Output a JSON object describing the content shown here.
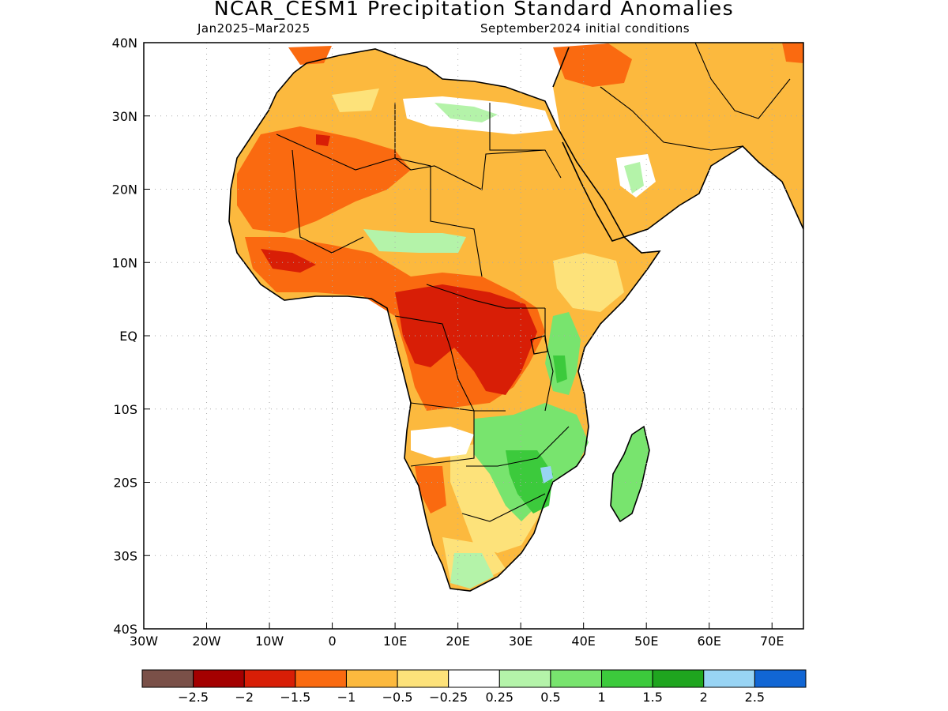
{
  "map": {
    "title": "NCAR_CESM1 Precipitation Standard Anomalies",
    "subtitle_left": "Jan2025–Mar2025",
    "subtitle_right": "September2024 initial conditions",
    "lon_labels": [
      "30W",
      "20W",
      "10W",
      "0",
      "10E",
      "20E",
      "30E",
      "40E",
      "50E",
      "60E",
      "70E"
    ],
    "lat_labels": [
      "40N",
      "30N",
      "20N",
      "10N",
      "EQ",
      "10S",
      "20S",
      "30S",
      "40S"
    ],
    "lon_range": [
      -30,
      75
    ],
    "lat_range": [
      -40,
      40
    ],
    "grid": "dotted",
    "projection": "cylindrical equidistant",
    "region": "Africa and Arabian Peninsula"
  },
  "colorbar": {
    "colors": [
      "#7a5048",
      "#a40000",
      "#d81e06",
      "#fa6a10",
      "#fcb93e",
      "#fde27a",
      "#ffffff",
      "#b4f3a9",
      "#78e46e",
      "#3cca3c",
      "#1fa51f",
      "#98d4f4",
      "#1166d4"
    ],
    "labels": [
      "−2.5",
      "−2",
      "−1.5",
      "−1",
      "−0.5",
      "−0.25",
      "0.25",
      "0.5",
      "1",
      "1.5",
      "2",
      "2.5"
    ]
  }
}
